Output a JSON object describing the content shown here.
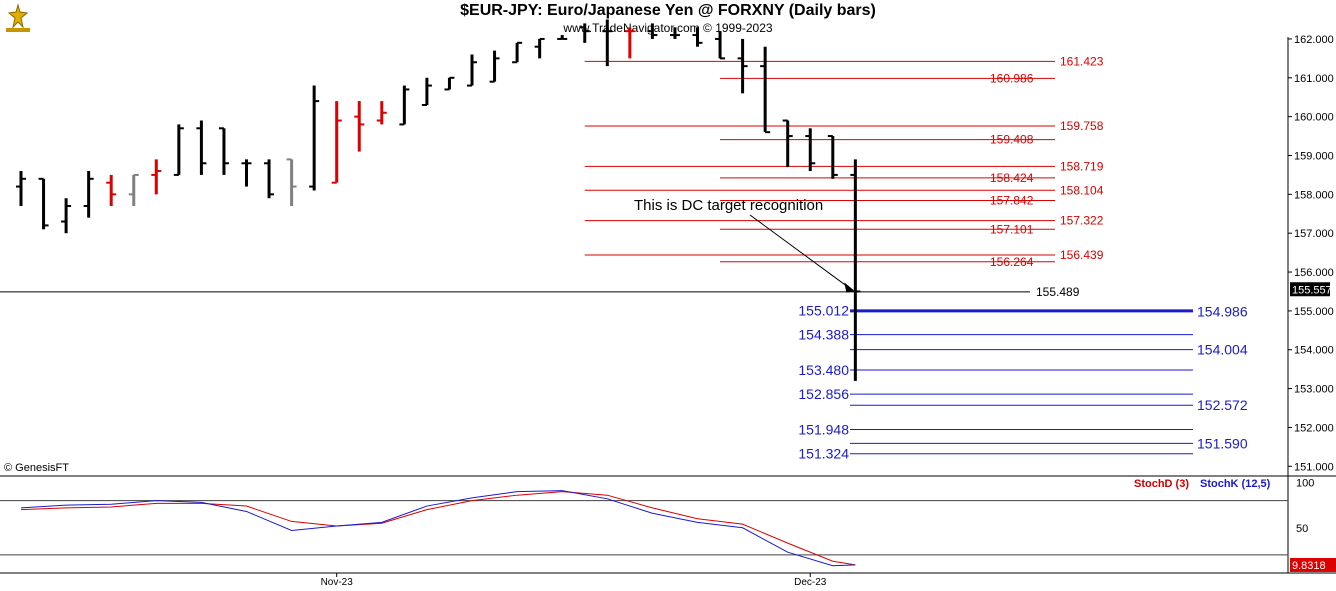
{
  "header": {
    "title": "$EUR-JPY:  Euro/Japanese Yen @ FORXNY  (Daily bars)",
    "subtitle": "www.TradeNavigator.com © 1999-2023"
  },
  "footer": {
    "copyright": "© GenesisFT"
  },
  "colors": {
    "up": "#000000",
    "down": "#dd0000",
    "neutral": "#808080",
    "red_level": "#dd0000",
    "blue_level": "#1a1ad0",
    "stoch_d": "#dd0000",
    "stoch_k": "#1a1ad0"
  },
  "chart_data": [
    {
      "type": "ohlc",
      "title": "$EUR-JPY:  Euro/Japanese Yen @ FORXNY  (Daily bars)",
      "y_axis": {
        "ticks": [
          "162.000",
          "161.000",
          "160.000",
          "159.000",
          "158.000",
          "157.000",
          "156.000",
          "155.000",
          "154.000",
          "153.000",
          "152.000",
          "151.000"
        ],
        "range": [
          150.75,
          162.05
        ]
      },
      "x_axis": {
        "ticks": [
          {
            "label": "Nov-23",
            "bar": 14
          },
          {
            "label": "Dec-23",
            "bar": 35
          }
        ]
      },
      "bars": [
        {
          "o": 158.2,
          "h": 158.6,
          "l": 157.7,
          "c": 158.4,
          "col": "black"
        },
        {
          "o": 158.4,
          "h": 158.4,
          "l": 157.1,
          "c": 157.2,
          "col": "black"
        },
        {
          "o": 157.3,
          "h": 157.9,
          "l": 157.0,
          "c": 157.7,
          "col": "black"
        },
        {
          "o": 157.7,
          "h": 158.6,
          "l": 157.4,
          "c": 158.4,
          "col": "black"
        },
        {
          "o": 158.3,
          "h": 158.5,
          "l": 157.7,
          "c": 158.0,
          "col": "red"
        },
        {
          "o": 158.0,
          "h": 158.5,
          "l": 157.7,
          "c": 158.5,
          "col": "gray"
        },
        {
          "o": 158.5,
          "h": 158.9,
          "l": 158.0,
          "c": 158.6,
          "col": "red"
        },
        {
          "o": 158.5,
          "h": 159.8,
          "l": 158.5,
          "c": 159.7,
          "col": "black"
        },
        {
          "o": 159.7,
          "h": 159.9,
          "l": 158.5,
          "c": 158.8,
          "col": "black"
        },
        {
          "o": 159.7,
          "h": 159.7,
          "l": 158.5,
          "c": 158.8,
          "col": "black"
        },
        {
          "o": 158.8,
          "h": 158.9,
          "l": 158.2,
          "c": 158.8,
          "col": "black"
        },
        {
          "o": 158.8,
          "h": 158.9,
          "l": 157.9,
          "c": 158.0,
          "col": "black"
        },
        {
          "o": 158.9,
          "h": 158.9,
          "l": 157.7,
          "c": 158.2,
          "col": "gray"
        },
        {
          "o": 158.2,
          "h": 160.8,
          "l": 158.1,
          "c": 160.4,
          "col": "black"
        },
        {
          "o": 158.3,
          "h": 160.4,
          "l": 158.3,
          "c": 159.9,
          "col": "red"
        },
        {
          "o": 160.0,
          "h": 160.4,
          "l": 159.1,
          "c": 159.8,
          "col": "red"
        },
        {
          "o": 159.9,
          "h": 160.4,
          "l": 159.8,
          "c": 160.1,
          "col": "red"
        },
        {
          "o": 159.8,
          "h": 160.8,
          "l": 159.8,
          "c": 160.7,
          "col": "black"
        },
        {
          "o": 160.3,
          "h": 161.0,
          "l": 160.3,
          "c": 160.8,
          "col": "black"
        },
        {
          "o": 160.7,
          "h": 161.0,
          "l": 160.7,
          "c": 161.0,
          "col": "black"
        },
        {
          "o": 160.8,
          "h": 161.6,
          "l": 160.8,
          "c": 161.4,
          "col": "black"
        },
        {
          "o": 160.9,
          "h": 161.7,
          "l": 160.9,
          "c": 161.5,
          "col": "black"
        },
        {
          "o": 161.4,
          "h": 161.9,
          "l": 161.4,
          "c": 161.9,
          "col": "black"
        },
        {
          "o": 161.8,
          "h": 162.0,
          "l": 161.5,
          "c": 162.0,
          "col": "black"
        },
        {
          "o": 162.0,
          "h": 162.1,
          "l": 162.0,
          "c": 162.0,
          "col": "black"
        },
        {
          "o": 162.3,
          "h": 162.4,
          "l": 161.9,
          "c": 162.2,
          "col": "black"
        },
        {
          "o": 162.2,
          "h": 162.5,
          "l": 161.3,
          "c": 162.2,
          "col": "black"
        },
        {
          "o": 162.2,
          "h": 162.3,
          "l": 161.5,
          "c": 162.2,
          "col": "red"
        },
        {
          "o": 162.2,
          "h": 162.4,
          "l": 162.0,
          "c": 162.1,
          "col": "black"
        },
        {
          "o": 162.1,
          "h": 162.3,
          "l": 162.0,
          "c": 162.1,
          "col": "black"
        },
        {
          "o": 162.1,
          "h": 162.3,
          "l": 161.8,
          "c": 161.9,
          "col": "black"
        },
        {
          "o": 162.0,
          "h": 162.2,
          "l": 161.5,
          "c": 161.5,
          "col": "black"
        },
        {
          "o": 161.5,
          "h": 162.0,
          "l": 160.6,
          "c": 161.3,
          "col": "black"
        },
        {
          "o": 161.3,
          "h": 161.8,
          "l": 159.6,
          "c": 159.6,
          "col": "black"
        },
        {
          "o": 159.9,
          "h": 159.9,
          "l": 158.7,
          "c": 159.5,
          "col": "black"
        },
        {
          "o": 159.5,
          "h": 159.7,
          "l": 158.6,
          "c": 158.8,
          "col": "black"
        },
        {
          "o": 159.5,
          "h": 159.5,
          "l": 158.4,
          "c": 158.5,
          "col": "black"
        },
        {
          "o": 158.5,
          "h": 158.9,
          "l": 153.2,
          "c": 155.5,
          "col": "black"
        }
      ],
      "levels_red": [
        {
          "value": 161.423,
          "label": "161.423",
          "x_start_bar": 25
        },
        {
          "value": 160.986,
          "label": "160.986",
          "x_start_bar": 31
        },
        {
          "value": 159.758,
          "label": "159.758",
          "x_start_bar": 25
        },
        {
          "value": 159.408,
          "label": "159.408",
          "x_start_bar": 31
        },
        {
          "value": 158.719,
          "label": "158.719",
          "x_start_bar": 25
        },
        {
          "value": 158.424,
          "label": "158.424",
          "x_start_bar": 31
        },
        {
          "value": 158.104,
          "label": "158.104",
          "x_start_bar": 25
        },
        {
          "value": 157.842,
          "label": "157.842",
          "x_start_bar": 31
        },
        {
          "value": 157.322,
          "label": "157.322",
          "x_start_bar": 25
        },
        {
          "value": 157.101,
          "label": "157.101",
          "x_start_bar": 31
        },
        {
          "value": 156.439,
          "label": "156.439",
          "x_start_bar": 25
        },
        {
          "value": 156.264,
          "label": "156.264",
          "x_start_bar": 31
        }
      ],
      "level_black": {
        "value": 155.489,
        "label": "155.489"
      },
      "levels_blue": [
        {
          "value": 155.012,
          "label": "155.012",
          "side": "left",
          "bold": true
        },
        {
          "value": 154.986,
          "label": "154.986",
          "side": "right",
          "bold": true
        },
        {
          "value": 154.388,
          "label": "154.388",
          "side": "left"
        },
        {
          "value": 154.004,
          "label": "154.004",
          "side": "right"
        },
        {
          "value": 153.48,
          "label": "153.480",
          "side": "left"
        },
        {
          "value": 152.856,
          "label": "152.856",
          "side": "left"
        },
        {
          "value": 152.572,
          "label": "152.572",
          "side": "right"
        },
        {
          "value": 151.948,
          "label": "151.948",
          "side": "left"
        },
        {
          "value": 151.59,
          "label": "151.590",
          "side": "right"
        },
        {
          "value": 151.324,
          "label": "151.324",
          "side": "left"
        }
      ],
      "last_price": {
        "value": 155.557,
        "label": "155.557"
      },
      "annotation": {
        "text": "This is DC target recognition",
        "arrow_to_bar": 37,
        "arrow_to_value": 155.5
      }
    },
    {
      "type": "line",
      "legend": [
        {
          "name": "StochD (3)",
          "color": "#dd0000"
        },
        {
          "name": "StochK (12,5)",
          "color": "#1a1ad0"
        }
      ],
      "y_axis": {
        "ticks": [
          "100",
          "50"
        ],
        "range": [
          0,
          105
        ]
      },
      "reference_lines": [
        80,
        20
      ],
      "last_value_label": "9.8318",
      "x": [
        0,
        2,
        4,
        6,
        8,
        10,
        12,
        14,
        16,
        18,
        20,
        22,
        24,
        26,
        28,
        30,
        32,
        34,
        36,
        37
      ],
      "series": [
        {
          "name": "StochD (3)",
          "values": [
            70,
            72,
            73,
            77,
            77,
            74,
            57,
            52,
            55,
            70,
            80,
            86,
            90,
            86,
            72,
            60,
            54,
            33,
            13,
            9
          ]
        },
        {
          "name": "StochK (12,5)",
          "values": [
            72,
            75,
            76,
            80,
            78,
            68,
            47,
            52,
            56,
            74,
            83,
            90,
            91,
            82,
            66,
            56,
            50,
            23,
            8,
            9
          ]
        }
      ]
    }
  ]
}
